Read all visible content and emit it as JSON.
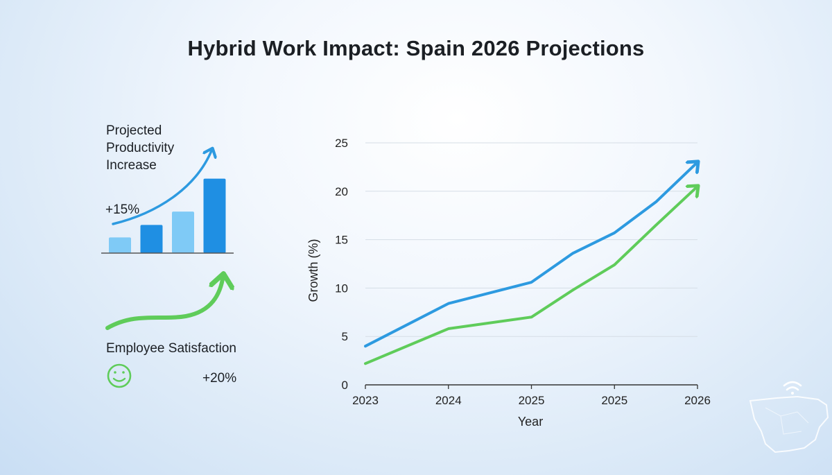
{
  "title": "Hybrid Work Impact: Spain 2026 Projections",
  "productivity": {
    "title": "Projected Productivity Increase",
    "value": "+15%",
    "bar_levels": [
      0.2,
      0.36,
      0.53,
      0.95
    ],
    "bar_colors": [
      "#7fcaf6",
      "#1f8fe3",
      "#7fcaf6",
      "#1f8fe3"
    ]
  },
  "satisfaction": {
    "title": "Employee Satisfaction",
    "value": "+20%",
    "icon": "smiley-icon"
  },
  "colors": {
    "blue": "#2d9ae0",
    "green": "#5fcc5a"
  },
  "chart_data": {
    "type": "line",
    "title": "",
    "xlabel": "Year",
    "ylabel": "Growth (%)",
    "x_tick_labels": [
      "2023",
      "2024",
      "2025",
      "2025",
      "2026"
    ],
    "yticks": [
      0,
      5,
      10,
      15,
      20,
      25
    ],
    "ylim": [
      0,
      25
    ],
    "grid": true,
    "series": [
      {
        "color": "#2d9ae0",
        "x": [
          0,
          1,
          2,
          2.5,
          3,
          3.5,
          4
        ],
        "values": [
          4.0,
          8.4,
          10.6,
          13.6,
          15.7,
          18.9,
          23.0
        ]
      },
      {
        "color": "#5fcc5a",
        "x": [
          0,
          1,
          2,
          2.5,
          3,
          3.5,
          4
        ],
        "values": [
          2.2,
          5.8,
          7.0,
          9.8,
          12.4,
          16.5,
          20.5
        ]
      }
    ]
  }
}
